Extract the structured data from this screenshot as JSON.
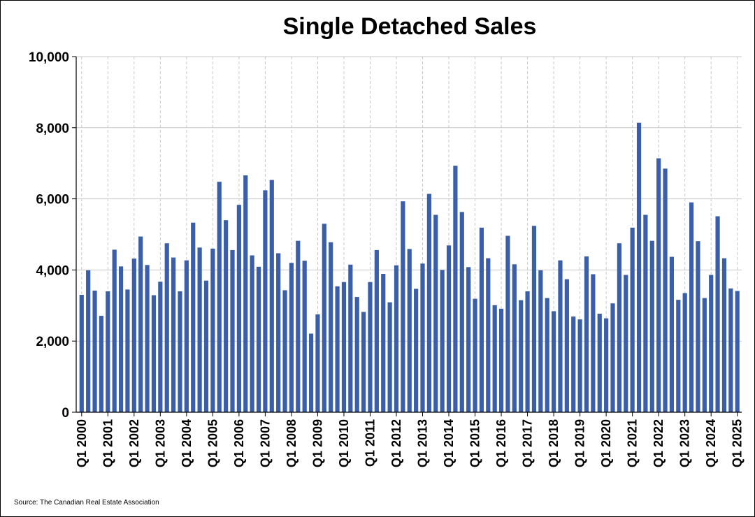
{
  "chart_data": {
    "type": "bar",
    "title": "Single Detached Sales",
    "source": "Source: The Canadian Real Estate Association",
    "bar_color": "#3a5fa8",
    "grid": true,
    "ylim": [
      0,
      10000
    ],
    "yticks": [
      0,
      2000,
      4000,
      6000,
      8000,
      10000
    ],
    "ytick_labels": [
      "0",
      "2,000",
      "4,000",
      "6,000",
      "8,000",
      "10,000"
    ],
    "xtick_labels": [
      "Q1 2000",
      "Q1 2001",
      "Q1 2002",
      "Q1 2003",
      "Q1 2004",
      "Q1 2005",
      "Q1 2006",
      "Q1 2007",
      "Q1 2008",
      "Q1 2009",
      "Q1 2010",
      "Q1 2011",
      "Q1 2012",
      "Q1 2013",
      "Q1 2014",
      "Q1 2015",
      "Q1 2016",
      "Q1 2017",
      "Q1 2018",
      "Q1 2019",
      "Q1 2020",
      "Q1 2021",
      "Q1 2022",
      "Q1 2023",
      "Q1 2024",
      "Q1 2025"
    ],
    "categories": [
      "Q1 2000",
      "Q2 2000",
      "Q3 2000",
      "Q4 2000",
      "Q1 2001",
      "Q2 2001",
      "Q3 2001",
      "Q4 2001",
      "Q1 2002",
      "Q2 2002",
      "Q3 2002",
      "Q4 2002",
      "Q1 2003",
      "Q2 2003",
      "Q3 2003",
      "Q4 2003",
      "Q1 2004",
      "Q2 2004",
      "Q3 2004",
      "Q4 2004",
      "Q1 2005",
      "Q2 2005",
      "Q3 2005",
      "Q4 2005",
      "Q1 2006",
      "Q2 2006",
      "Q3 2006",
      "Q4 2006",
      "Q1 2007",
      "Q2 2007",
      "Q3 2007",
      "Q4 2007",
      "Q1 2008",
      "Q2 2008",
      "Q3 2008",
      "Q4 2008",
      "Q1 2009",
      "Q2 2009",
      "Q3 2009",
      "Q4 2009",
      "Q1 2010",
      "Q2 2010",
      "Q3 2010",
      "Q4 2010",
      "Q1 2011",
      "Q2 2011",
      "Q3 2011",
      "Q4 2011",
      "Q1 2012",
      "Q2 2012",
      "Q3 2012",
      "Q4 2012",
      "Q1 2013",
      "Q2 2013",
      "Q3 2013",
      "Q4 2013",
      "Q1 2014",
      "Q2 2014",
      "Q3 2014",
      "Q4 2014",
      "Q1 2015",
      "Q2 2015",
      "Q3 2015",
      "Q4 2015",
      "Q1 2016",
      "Q2 2016",
      "Q3 2016",
      "Q4 2016",
      "Q1 2017",
      "Q2 2017",
      "Q3 2017",
      "Q4 2017",
      "Q1 2018",
      "Q2 2018",
      "Q3 2018",
      "Q4 2018",
      "Q1 2019",
      "Q2 2019",
      "Q3 2019",
      "Q4 2019",
      "Q1 2020",
      "Q2 2020",
      "Q3 2020",
      "Q4 2020",
      "Q1 2021",
      "Q2 2021",
      "Q3 2021",
      "Q4 2021",
      "Q1 2022",
      "Q2 2022",
      "Q3 2022",
      "Q4 2022",
      "Q1 2023",
      "Q2 2023",
      "Q3 2023",
      "Q4 2023",
      "Q1 2024",
      "Q2 2024",
      "Q3 2024",
      "Q4 2024",
      "Q1 2025"
    ],
    "values": [
      3300,
      3990,
      3420,
      2710,
      3400,
      4570,
      4100,
      3450,
      4320,
      4940,
      4140,
      3290,
      3670,
      4750,
      4350,
      3400,
      4270,
      5330,
      4630,
      3700,
      4600,
      6480,
      5400,
      4560,
      5830,
      6660,
      4410,
      4090,
      6240,
      6530,
      4470,
      3430,
      4200,
      4820,
      4260,
      2210,
      2750,
      5300,
      4780,
      3540,
      3660,
      4150,
      3240,
      2820,
      3660,
      4560,
      3890,
      3090,
      4130,
      5930,
      4590,
      3470,
      4180,
      6140,
      5550,
      4000,
      4690,
      6930,
      5630,
      4080,
      3190,
      5190,
      4330,
      3010,
      2910,
      4960,
      4160,
      3150,
      3400,
      5240,
      3990,
      3210,
      2840,
      4270,
      3740,
      2690,
      2610,
      4380,
      3880,
      2770,
      2640,
      3060,
      4750,
      3860,
      5190,
      8140,
      5550,
      4820,
      7140,
      6850,
      4370,
      3160,
      3350,
      5900,
      4810,
      3210,
      3860,
      5510,
      4330,
      3480,
      3410
    ]
  }
}
